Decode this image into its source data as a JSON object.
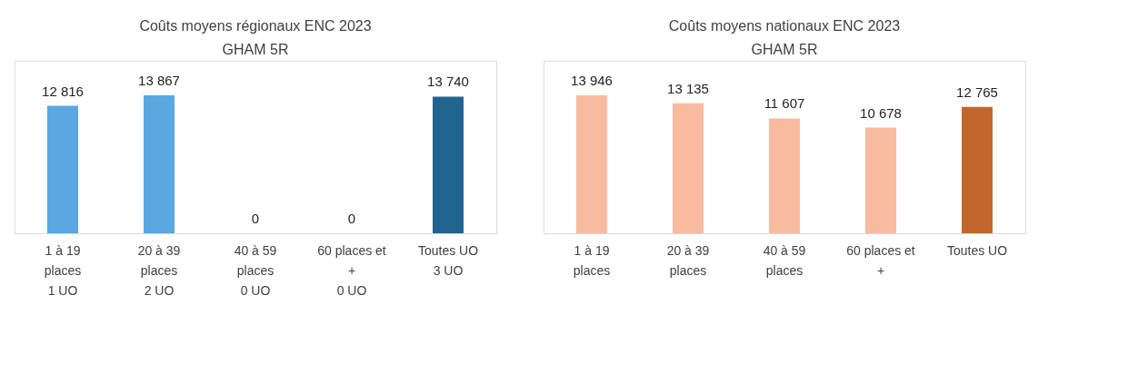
{
  "chart_data": [
    {
      "type": "bar",
      "title": "Coûts moyens régionaux ENC 2023\nGHAM 5R",
      "categories": [
        "1 à 19\nplaces\n \n1 UO",
        "20 à 39\nplaces\n \n2  UO",
        "40 à 59\nplaces\n \n0 UO",
        "60 places et\n+\n \n0 UO",
        "Toutes UO\n \n \n3 UO"
      ],
      "values": [
        12816,
        13867,
        0,
        0,
        13740
      ],
      "colors": [
        "#5aa7e2",
        "#5aa7e2",
        "#5aa7e2",
        "#5aa7e2",
        "#1f6590"
      ],
      "value_labels": [
        "12 816",
        "13 867",
        "0",
        "0",
        "13 740"
      ]
    },
    {
      "type": "bar",
      "title": "Coûts moyens nationaux ENC 2023\nGHAM 5R",
      "categories": [
        "1 à 19\nplaces",
        "20 à 39\nplaces",
        "40 à 59\nplaces",
        "60 places et\n+",
        "Toutes UO"
      ],
      "values": [
        13946,
        13135,
        11607,
        10678,
        12765
      ],
      "colors": [
        "#f8bb9f",
        "#f8bb9f",
        "#f8bb9f",
        "#f8bb9f",
        "#c2672c"
      ],
      "value_labels": [
        "13 946",
        "13 135",
        "11 607",
        "10 678",
        "12 765"
      ]
    }
  ]
}
